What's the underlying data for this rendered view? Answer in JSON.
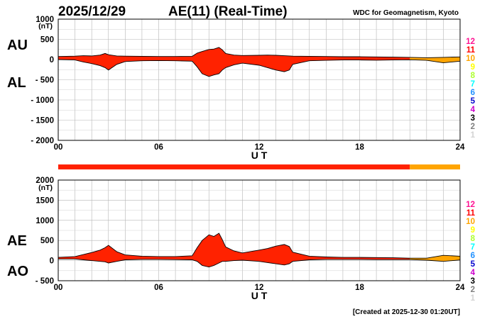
{
  "header": {
    "date": "2025/12/29",
    "title": "AE(11) (Real-Time)",
    "source": "WDC for Geomagnetism, Kyoto"
  },
  "footer": {
    "created": "[Created at 2025-12-30 01:20UT]"
  },
  "station_scale": [
    {
      "label": "12",
      "color": "#ff1493"
    },
    {
      "label": "11",
      "color": "#ff0000"
    },
    {
      "label": "10",
      "color": "#ffa500"
    },
    {
      "label": "9",
      "color": "#ffff00"
    },
    {
      "label": "8",
      "color": "#adff2f"
    },
    {
      "label": "7",
      "color": "#00ffff"
    },
    {
      "label": "6",
      "color": "#1e90ff"
    },
    {
      "label": "5",
      "color": "#0000cd"
    },
    {
      "label": "4",
      "color": "#cc00cc"
    },
    {
      "label": "3",
      "color": "#000000"
    },
    {
      "label": "2",
      "color": "#808080"
    },
    {
      "label": "1",
      "color": "#d3d3d3"
    }
  ],
  "station_bar": [
    {
      "from": 0,
      "to": 21,
      "station_count": 11,
      "color": "#ff2200"
    },
    {
      "from": 21,
      "to": 24,
      "station_count": 10,
      "color": "#ffa500"
    }
  ],
  "chart_data": [
    {
      "type": "area",
      "name": "AU/AL",
      "top_label": "AU",
      "bottom_label": "AL",
      "unit": "(nT)",
      "xlabel": "U T",
      "xlim": [
        0,
        24
      ],
      "xticks": [
        "00",
        "06",
        "12",
        "18",
        "24"
      ],
      "ylim": [
        -2000,
        1000
      ],
      "yticks": [
        1000,
        500,
        0,
        -500,
        -1000,
        -1500,
        -2000
      ],
      "ytick_labels": [
        "1000",
        "500",
        "0",
        "- 500",
        "- 1000",
        "- 1500",
        "- 2000"
      ],
      "grid": true,
      "x": [
        0,
        1,
        1.5,
        2,
        2.5,
        2.8,
        3,
        3.5,
        4,
        5,
        6,
        7,
        8,
        8.3,
        8.6,
        9,
        9.3,
        9.6,
        9.8,
        10,
        10.5,
        11,
        12,
        12.5,
        13,
        13.5,
        13.8,
        14,
        15,
        16,
        17,
        18,
        19,
        20,
        21,
        22,
        23,
        24
      ],
      "upper": [
        75,
        85,
        95,
        90,
        110,
        150,
        120,
        90,
        85,
        80,
        75,
        75,
        80,
        160,
        200,
        250,
        260,
        300,
        240,
        150,
        110,
        100,
        105,
        110,
        105,
        95,
        90,
        85,
        80,
        75,
        70,
        70,
        65,
        60,
        55,
        45,
        55,
        65
      ],
      "lower": [
        0,
        -10,
        -60,
        -100,
        -150,
        -200,
        -260,
        -120,
        -50,
        -30,
        -25,
        -30,
        -40,
        -180,
        -350,
        -420,
        -380,
        -350,
        -260,
        -200,
        -130,
        -90,
        -140,
        -200,
        -260,
        -300,
        -260,
        -120,
        -30,
        -20,
        -10,
        -10,
        -15,
        -10,
        -5,
        -20,
        -80,
        -40
      ]
    },
    {
      "type": "area",
      "name": "AE/AO",
      "top_label": "AE",
      "bottom_label": "AO",
      "unit": "(nT)",
      "xlabel": "U T",
      "xlim": [
        0,
        24
      ],
      "xticks": [
        "00",
        "06",
        "12",
        "18",
        "24"
      ],
      "ylim": [
        -500,
        2000
      ],
      "yticks": [
        2000,
        1500,
        1000,
        500,
        0,
        -500
      ],
      "ytick_labels": [
        "2000",
        "1500",
        "1000",
        "500",
        "0",
        "- 500"
      ],
      "grid": true,
      "x": [
        0,
        1,
        1.5,
        2,
        2.5,
        2.8,
        3,
        3.5,
        4,
        5,
        6,
        7,
        8,
        8.3,
        8.6,
        9,
        9.3,
        9.6,
        9.8,
        10,
        10.5,
        11,
        12,
        12.5,
        13,
        13.5,
        13.8,
        14,
        15,
        16,
        17,
        18,
        19,
        20,
        21,
        22,
        23,
        24
      ],
      "upper": [
        80,
        100,
        150,
        200,
        260,
        320,
        380,
        220,
        140,
        110,
        100,
        100,
        120,
        320,
        500,
        640,
        600,
        680,
        520,
        340,
        240,
        190,
        260,
        300,
        360,
        400,
        350,
        210,
        110,
        90,
        80,
        80,
        75,
        70,
        60,
        60,
        130,
        110
      ],
      "lower": [
        40,
        40,
        20,
        0,
        -20,
        -30,
        -60,
        -20,
        20,
        30,
        30,
        25,
        20,
        -20,
        -120,
        -160,
        -120,
        -60,
        -20,
        -20,
        0,
        10,
        -20,
        -50,
        -80,
        -110,
        -80,
        -20,
        20,
        30,
        30,
        30,
        25,
        25,
        25,
        10,
        -20,
        15
      ]
    }
  ]
}
